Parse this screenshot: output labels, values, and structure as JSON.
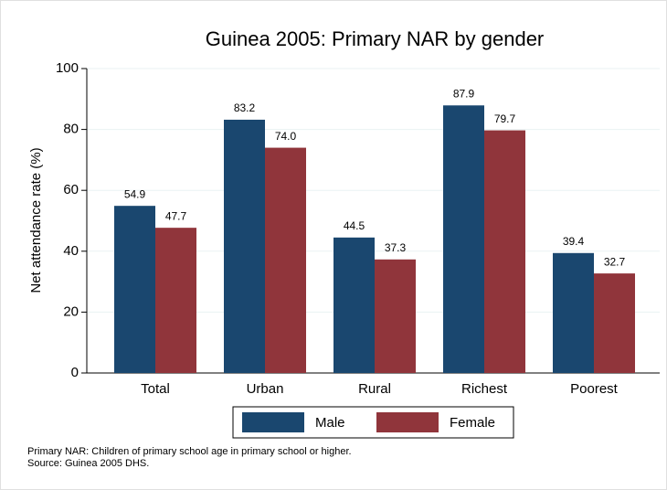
{
  "chart_data": {
    "type": "bar",
    "title": "Guinea 2005: Primary NAR by gender",
    "y_label": "Net attendance rate (%)",
    "categories": [
      "Total",
      "Urban",
      "Rural",
      "Richest",
      "Poorest"
    ],
    "series": [
      {
        "name": "Male",
        "color": "#1a476f",
        "values": [
          54.9,
          83.2,
          44.5,
          87.9,
          39.4
        ],
        "value_labels": [
          "54.9",
          "83.2",
          "44.5",
          "87.9",
          "39.4"
        ]
      },
      {
        "name": "Female",
        "color": "#90353b",
        "values": [
          47.7,
          74.0,
          37.3,
          79.7,
          32.7
        ],
        "value_labels": [
          "47.7",
          "74.0",
          "37.3",
          "79.7",
          "32.7"
        ]
      }
    ],
    "ylim": [
      0,
      100
    ],
    "yticks": [
      0,
      20,
      40,
      60,
      80,
      100
    ],
    "grid": true,
    "legend": "bottom",
    "notes": [
      "Primary NAR: Children of primary school age in primary school or higher.",
      "Source: Guinea 2005 DHS."
    ]
  }
}
